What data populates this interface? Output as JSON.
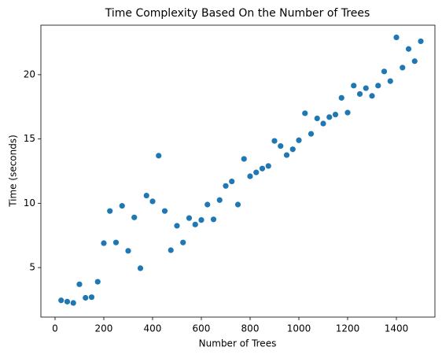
{
  "chart_data": {
    "type": "scatter",
    "title": "Time Complexity Based On the Number of Trees",
    "xlabel": "Number of Trees",
    "ylabel": "Time (seconds)",
    "color": "#1f77b4",
    "x": [
      25,
      50,
      75,
      100,
      125,
      150,
      175,
      200,
      225,
      250,
      275,
      300,
      325,
      350,
      375,
      400,
      425,
      450,
      475,
      500,
      525,
      550,
      575,
      600,
      625,
      650,
      675,
      700,
      725,
      750,
      775,
      800,
      825,
      850,
      875,
      900,
      925,
      950,
      975,
      1000,
      1025,
      1050,
      1075,
      1100,
      1125,
      1150,
      1175,
      1200,
      1225,
      1250,
      1275,
      1300,
      1325,
      1350,
      1375,
      1400,
      1425,
      1450,
      1475,
      1500
    ],
    "values": [
      2.45,
      2.35,
      2.25,
      3.7,
      2.65,
      2.7,
      3.9,
      6.9,
      9.4,
      6.95,
      9.8,
      6.3,
      8.9,
      4.95,
      10.6,
      10.15,
      13.7,
      9.4,
      6.35,
      8.25,
      6.95,
      8.85,
      8.35,
      8.7,
      9.9,
      8.75,
      10.25,
      11.35,
      11.7,
      9.9,
      13.45,
      12.1,
      12.4,
      12.7,
      12.9,
      14.85,
      14.45,
      13.75,
      14.2,
      14.9,
      17.0,
      15.4,
      16.6,
      16.2,
      16.7,
      16.9,
      18.2,
      17.05,
      19.15,
      18.5,
      18.95,
      18.35,
      19.15,
      20.25,
      19.5,
      22.9,
      20.55,
      22.0,
      21.05,
      22.6
    ],
    "xlim": [
      -58,
      1558
    ],
    "ylim": [
      1.15,
      23.85
    ],
    "xticks": [
      0,
      200,
      400,
      600,
      800,
      1000,
      1200,
      1400
    ],
    "yticks": [
      5,
      10,
      15,
      20
    ],
    "grid": false
  }
}
